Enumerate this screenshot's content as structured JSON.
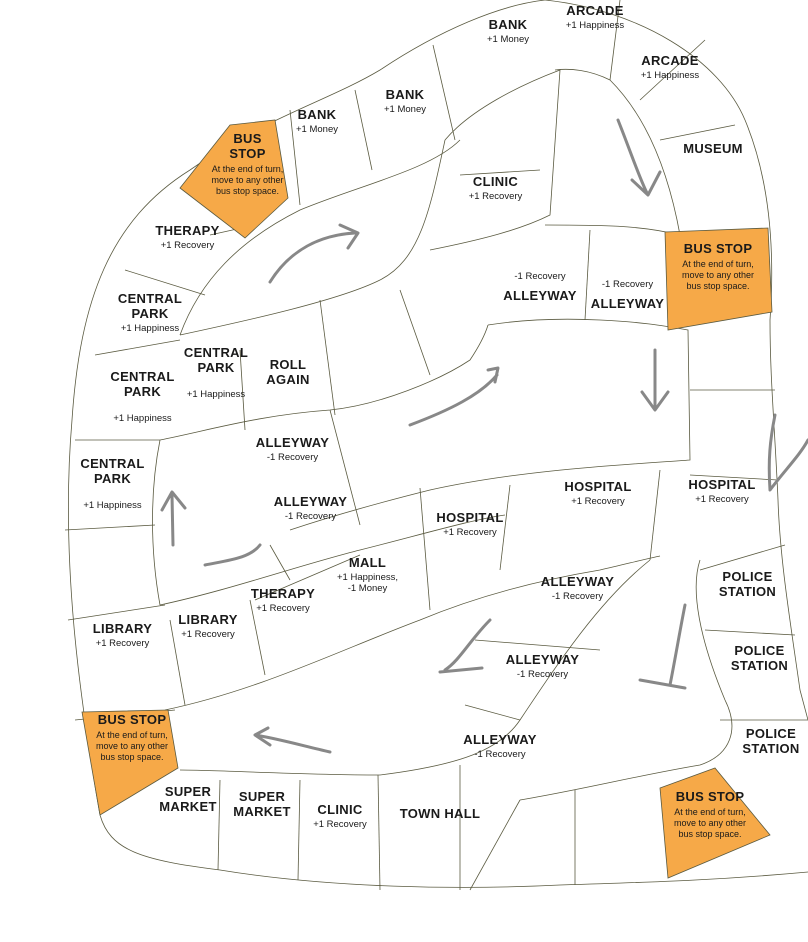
{
  "colors": {
    "bus_stop": "#f6a948",
    "border": "#5a5a40",
    "arrow": "#888888",
    "background": "#ffffff"
  },
  "board": {
    "spaces": [
      {
        "id": "bank-top",
        "name": "BANK",
        "effect": "+1 Money"
      },
      {
        "id": "arcade-1",
        "name": "ARCADE",
        "effect": "+1 Happiness"
      },
      {
        "id": "arcade-2",
        "name": "ARCADE",
        "effect": "+1 Happiness"
      },
      {
        "id": "museum",
        "name": "MUSEUM",
        "effect": ""
      },
      {
        "id": "bank-mid",
        "name": "BANK",
        "effect": "+1 Money"
      },
      {
        "id": "bank-left",
        "name": "BANK",
        "effect": "+1 Money"
      },
      {
        "id": "bus-stop-1",
        "name": "BUS\nSTOP",
        "effect": "At the end of turn,\nmove to any other\nbus stop space."
      },
      {
        "id": "clinic-1",
        "name": "CLINIC",
        "effect": "+1 Recovery"
      },
      {
        "id": "bus-stop-2",
        "name": "BUS STOP",
        "effect": "At the end of turn,\nmove to any other\nbus stop space."
      },
      {
        "id": "therapy-1",
        "name": "THERAPY",
        "effect": "+1 Recovery"
      },
      {
        "id": "alleyway-1",
        "name": "ALLEYWAY",
        "effect": "-1 Recovery"
      },
      {
        "id": "alleyway-2",
        "name": "ALLEYWAY",
        "effect": "-1 Recovery"
      },
      {
        "id": "central-park-1",
        "name": "CENTRAL\nPARK",
        "effect": "+1 Happiness"
      },
      {
        "id": "central-park-2",
        "name": "CENTRAL\nPARK",
        "effect": "+1 Happiness"
      },
      {
        "id": "central-park-3",
        "name": "CENTRAL\nPARK",
        "effect": "+1 Happiness"
      },
      {
        "id": "central-park-4",
        "name": "CENTRAL\nPARK",
        "effect": "+1 Happiness"
      },
      {
        "id": "roll-again",
        "name": "ROLL\nAGAIN",
        "effect": ""
      },
      {
        "id": "alleyway-3",
        "name": "ALLEYWAY",
        "effect": "-1 Recovery"
      },
      {
        "id": "alleyway-4",
        "name": "ALLEYWAY",
        "effect": "-1 Recovery"
      },
      {
        "id": "hospital-1",
        "name": "HOSPITAL",
        "effect": "+1 Recovery"
      },
      {
        "id": "hospital-2",
        "name": "HOSPITAL",
        "effect": "+1 Recovery"
      },
      {
        "id": "hospital-3",
        "name": "HOSPITAL",
        "effect": "+1 Recovery"
      },
      {
        "id": "mall",
        "name": "MALL",
        "effect": "+1 Happiness,\n-1 Money"
      },
      {
        "id": "therapy-2",
        "name": "THERAPY",
        "effect": "+1 Recovery"
      },
      {
        "id": "library-1",
        "name": "LIBRARY",
        "effect": "+1 Recovery"
      },
      {
        "id": "library-2",
        "name": "LIBRARY",
        "effect": "+1 Recovery"
      },
      {
        "id": "police-1",
        "name": "POLICE\nSTATION",
        "effect": ""
      },
      {
        "id": "police-2",
        "name": "POLICE\nSTATION",
        "effect": ""
      },
      {
        "id": "police-3",
        "name": "POLICE\nSTATION",
        "effect": ""
      },
      {
        "id": "alleyway-5",
        "name": "ALLEYWAY",
        "effect": "-1 Recovery"
      },
      {
        "id": "alleyway-6",
        "name": "ALLEYWAY",
        "effect": "-1 Recovery"
      },
      {
        "id": "alleyway-7",
        "name": "ALLEYWAY",
        "effect": "-1 Recovery"
      },
      {
        "id": "bus-stop-3",
        "name": "BUS STOP",
        "effect": "At the end of turn,\nmove to any other\nbus stop space."
      },
      {
        "id": "supermarket-1",
        "name": "SUPER\nMARKET",
        "effect": ""
      },
      {
        "id": "supermarket-2",
        "name": "SUPER\nMARKET",
        "effect": ""
      },
      {
        "id": "clinic-2",
        "name": "CLINIC",
        "effect": "+1 Recovery"
      },
      {
        "id": "town-hall",
        "name": "TOWN HALL",
        "effect": ""
      },
      {
        "id": "bus-stop-4",
        "name": "BUS STOP",
        "effect": "At the end of turn,\nmove to any other\nbus stop space."
      }
    ]
  }
}
